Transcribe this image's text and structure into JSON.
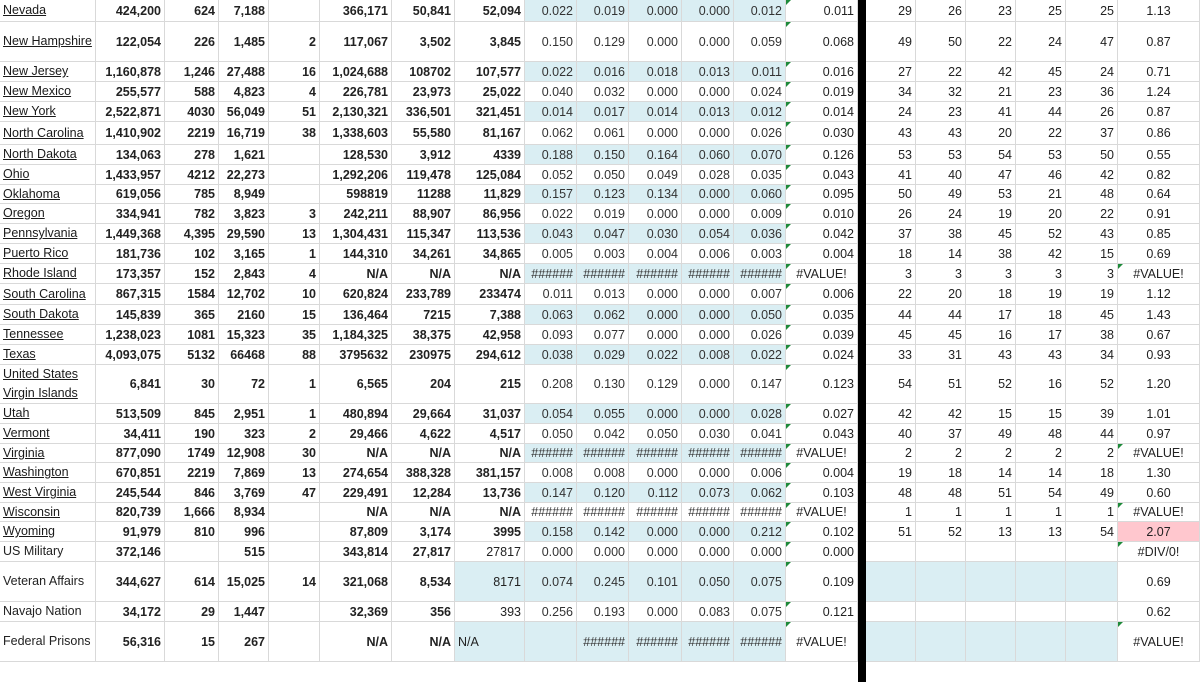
{
  "colors": {
    "band": "#daeef3",
    "highlight": "#ffc7ce",
    "grid": "#d9d9d9",
    "separator": "#000000",
    "error_flag": "#1e8a3a"
  },
  "rows": [
    {
      "name": "Nevada",
      "link": true,
      "c": [
        "424,200",
        "624",
        "7,188",
        "",
        "366,171",
        "50,841",
        "52,094"
      ],
      "d": [
        "0.022",
        "0.019",
        "0.000",
        "0.000",
        "0.012"
      ],
      "avg": "0.011",
      "r": [
        "29",
        "26",
        "23",
        "25",
        "25"
      ],
      "ratio": "1.13"
    },
    {
      "name": "New Hampshire",
      "link": true,
      "c": [
        "122,054",
        "226",
        "1,485",
        "2",
        "117,067",
        "3,502",
        "3,845"
      ],
      "d": [
        "0.150",
        "0.129",
        "0.000",
        "0.000",
        "0.059"
      ],
      "avg": "0.068",
      "r": [
        "49",
        "50",
        "22",
        "24",
        "47"
      ],
      "ratio": "0.87"
    },
    {
      "name": "New Jersey",
      "link": true,
      "c": [
        "1,160,878",
        "1,246",
        "27,488",
        "16",
        "1,024,688",
        "108702",
        "107,577"
      ],
      "d": [
        "0.022",
        "0.016",
        "0.018",
        "0.013",
        "0.011"
      ],
      "avg": "0.016",
      "r": [
        "27",
        "22",
        "42",
        "45",
        "24"
      ],
      "ratio": "0.71"
    },
    {
      "name": "New Mexico",
      "link": true,
      "c": [
        "255,577",
        "588",
        "4,823",
        "4",
        "226,781",
        "23,973",
        "25,022"
      ],
      "d": [
        "0.040",
        "0.032",
        "0.000",
        "0.000",
        "0.024"
      ],
      "avg": "0.019",
      "r": [
        "34",
        "32",
        "21",
        "23",
        "36"
      ],
      "ratio": "1.24"
    },
    {
      "name": "New York",
      "link": true,
      "c": [
        "2,522,871",
        "4030",
        "56,049",
        "51",
        "2,130,321",
        "336,501",
        "321,451"
      ],
      "d": [
        "0.014",
        "0.017",
        "0.014",
        "0.013",
        "0.012"
      ],
      "avg": "0.014",
      "r": [
        "24",
        "23",
        "41",
        "44",
        "26"
      ],
      "ratio": "0.87"
    },
    {
      "name": "North Carolina",
      "link": true,
      "c": [
        "1,410,902",
        "2219",
        "16,719",
        "38",
        "1,338,603",
        "55,580",
        "81,167"
      ],
      "d": [
        "0.062",
        "0.061",
        "0.000",
        "0.000",
        "0.026"
      ],
      "avg": "0.030",
      "r": [
        "43",
        "43",
        "20",
        "22",
        "37"
      ],
      "ratio": "0.86"
    },
    {
      "name": "North Dakota",
      "link": true,
      "c": [
        "134,063",
        "278",
        "1,621",
        "",
        "128,530",
        "3,912",
        "4339"
      ],
      "d": [
        "0.188",
        "0.150",
        "0.164",
        "0.060",
        "0.070"
      ],
      "avg": "0.126",
      "r": [
        "53",
        "53",
        "54",
        "53",
        "50"
      ],
      "ratio": "0.55"
    },
    {
      "name": "Ohio",
      "link": true,
      "c": [
        "1,433,957",
        "4212",
        "22,273",
        "",
        "1,292,206",
        "119,478",
        "125,084"
      ],
      "d": [
        "0.052",
        "0.050",
        "0.049",
        "0.028",
        "0.035"
      ],
      "avg": "0.043",
      "r": [
        "41",
        "40",
        "47",
        "46",
        "42"
      ],
      "ratio": "0.82"
    },
    {
      "name": "Oklahoma",
      "link": true,
      "c": [
        "619,056",
        "785",
        "8,949",
        "",
        "598819",
        "11288",
        "11,829"
      ],
      "d": [
        "0.157",
        "0.123",
        "0.134",
        "0.000",
        "0.060"
      ],
      "avg": "0.095",
      "r": [
        "50",
        "49",
        "53",
        "21",
        "48"
      ],
      "ratio": "0.64"
    },
    {
      "name": "Oregon",
      "link": true,
      "c": [
        "334,941",
        "782",
        "3,823",
        "3",
        "242,211",
        "88,907",
        "86,956"
      ],
      "d": [
        "0.022",
        "0.019",
        "0.000",
        "0.000",
        "0.009"
      ],
      "avg": "0.010",
      "r": [
        "26",
        "24",
        "19",
        "20",
        "22"
      ],
      "ratio": "0.91"
    },
    {
      "name": "Pennsylvania",
      "link": true,
      "c": [
        "1,449,368",
        "4,395",
        "29,590",
        "13",
        "1,304,431",
        "115,347",
        "113,536"
      ],
      "d": [
        "0.043",
        "0.047",
        "0.030",
        "0.054",
        "0.036"
      ],
      "avg": "0.042",
      "r": [
        "37",
        "38",
        "45",
        "52",
        "43"
      ],
      "ratio": "0.85"
    },
    {
      "name": "Puerto Rico",
      "link": true,
      "c": [
        "181,736",
        "102",
        "3,165",
        "1",
        "144,310",
        "34,261",
        "34,865"
      ],
      "d": [
        "0.005",
        "0.003",
        "0.004",
        "0.006",
        "0.003"
      ],
      "avg": "0.004",
      "r": [
        "18",
        "14",
        "38",
        "42",
        "15"
      ],
      "ratio": "0.69"
    },
    {
      "name": "Rhode Island",
      "link": true,
      "c": [
        "173,357",
        "152",
        "2,843",
        "4",
        "N/A",
        "N/A",
        "N/A"
      ],
      "d": [
        "######",
        "######",
        "######",
        "######",
        "######"
      ],
      "avg": "#VALUE!",
      "r": [
        "3",
        "3",
        "3",
        "3",
        "3"
      ],
      "ratio": "#VALUE!"
    },
    {
      "name": "South Carolina",
      "link": true,
      "c": [
        "867,315",
        "1584",
        "12,702",
        "10",
        "620,824",
        "233,789",
        "233474"
      ],
      "d": [
        "0.011",
        "0.013",
        "0.000",
        "0.000",
        "0.007"
      ],
      "avg": "0.006",
      "r": [
        "22",
        "20",
        "18",
        "19",
        "19"
      ],
      "ratio": "1.12"
    },
    {
      "name": "South Dakota",
      "link": true,
      "c": [
        "145,839",
        "365",
        "2160",
        "15",
        "136,464",
        "7215",
        "7,388"
      ],
      "d": [
        "0.063",
        "0.062",
        "0.000",
        "0.000",
        "0.050"
      ],
      "avg": "0.035",
      "r": [
        "44",
        "44",
        "17",
        "18",
        "45"
      ],
      "ratio": "1.43"
    },
    {
      "name": "Tennessee",
      "link": true,
      "c": [
        "1,238,023",
        "1081",
        "15,323",
        "35",
        "1,184,325",
        "38,375",
        "42,958"
      ],
      "d": [
        "0.093",
        "0.077",
        "0.000",
        "0.000",
        "0.026"
      ],
      "avg": "0.039",
      "r": [
        "45",
        "45",
        "16",
        "17",
        "38"
      ],
      "ratio": "0.67"
    },
    {
      "name": "Texas",
      "link": true,
      "c": [
        "4,093,075",
        "5132",
        "66468",
        "88",
        "3795632",
        "230975",
        "294,612"
      ],
      "d": [
        "0.038",
        "0.029",
        "0.022",
        "0.008",
        "0.022"
      ],
      "avg": "0.024",
      "r": [
        "33",
        "31",
        "43",
        "43",
        "34"
      ],
      "ratio": "0.93"
    },
    {
      "name": "United States Virgin Islands",
      "link": true,
      "c": [
        "6,841",
        "30",
        "72",
        "1",
        "6,565",
        "204",
        "215"
      ],
      "d": [
        "0.208",
        "0.130",
        "0.129",
        "0.000",
        "0.147"
      ],
      "avg": "0.123",
      "r": [
        "54",
        "51",
        "52",
        "16",
        "52"
      ],
      "ratio": "1.20"
    },
    {
      "name": "Utah",
      "link": true,
      "c": [
        "513,509",
        "845",
        "2,951",
        "1",
        "480,894",
        "29,664",
        "31,037"
      ],
      "d": [
        "0.054",
        "0.055",
        "0.000",
        "0.000",
        "0.028"
      ],
      "avg": "0.027",
      "r": [
        "42",
        "42",
        "15",
        "15",
        "39"
      ],
      "ratio": "1.01"
    },
    {
      "name": "Vermont",
      "link": true,
      "c": [
        "34,411",
        "190",
        "323",
        "2",
        "29,466",
        "4,622",
        "4,517"
      ],
      "d": [
        "0.050",
        "0.042",
        "0.050",
        "0.030",
        "0.041"
      ],
      "avg": "0.043",
      "r": [
        "40",
        "37",
        "49",
        "48",
        "44"
      ],
      "ratio": "0.97"
    },
    {
      "name": "Virginia",
      "link": true,
      "c": [
        "877,090",
        "1749",
        "12,908",
        "30",
        "N/A",
        "N/A",
        "N/A"
      ],
      "d": [
        "######",
        "######",
        "######",
        "######",
        "######"
      ],
      "avg": "#VALUE!",
      "r": [
        "2",
        "2",
        "2",
        "2",
        "2"
      ],
      "ratio": "#VALUE!"
    },
    {
      "name": "Washington",
      "link": true,
      "c": [
        "670,851",
        "2219",
        "7,869",
        "13",
        "274,654",
        "388,328",
        "381,157"
      ],
      "d": [
        "0.008",
        "0.008",
        "0.000",
        "0.000",
        "0.006"
      ],
      "avg": "0.004",
      "r": [
        "19",
        "18",
        "14",
        "14",
        "18"
      ],
      "ratio": "1.30"
    },
    {
      "name": "West Virginia",
      "link": true,
      "c": [
        "245,544",
        "846",
        "3,769",
        "47",
        "229,491",
        "12,284",
        "13,736"
      ],
      "d": [
        "0.147",
        "0.120",
        "0.112",
        "0.073",
        "0.062"
      ],
      "avg": "0.103",
      "r": [
        "48",
        "48",
        "51",
        "54",
        "49"
      ],
      "ratio": "0.60"
    },
    {
      "name": "Wisconsin",
      "link": true,
      "c": [
        "820,739",
        "1,666",
        "8,934",
        "",
        "N/A",
        "N/A",
        "N/A"
      ],
      "d": [
        "######",
        "######",
        "######",
        "######",
        "######"
      ],
      "avg": "#VALUE!",
      "r": [
        "1",
        "1",
        "1",
        "1",
        "1"
      ],
      "ratio": "#VALUE!"
    },
    {
      "name": "Wyoming",
      "link": true,
      "c": [
        "91,979",
        "810",
        "996",
        "",
        "87,809",
        "3,174",
        "3995"
      ],
      "d": [
        "0.158",
        "0.142",
        "0.000",
        "0.000",
        "0.212"
      ],
      "avg": "0.102",
      "r": [
        "51",
        "52",
        "13",
        "13",
        "54"
      ],
      "ratio": "2.07"
    },
    {
      "name": "US Military",
      "link": false,
      "c": [
        "372,146",
        "",
        "515",
        "",
        "343,814",
        "27,817",
        "27817"
      ],
      "d": [
        "0.000",
        "0.000",
        "0.000",
        "0.000",
        "0.000"
      ],
      "avg": "0.000",
      "r": [
        "",
        "",
        "",
        "",
        ""
      ],
      "ratio": "#DIV/0!"
    },
    {
      "name": "Veteran Affairs",
      "link": false,
      "c": [
        "344,627",
        "614",
        "15,025",
        "14",
        "321,068",
        "8,534",
        "8171"
      ],
      "d": [
        "0.074",
        "0.245",
        "0.101",
        "0.050",
        "0.075"
      ],
      "avg": "0.109",
      "r": [
        "",
        "",
        "",
        "",
        ""
      ],
      "ratio": "0.69"
    },
    {
      "name": "Navajo Nation",
      "link": false,
      "c": [
        "34,172",
        "29",
        "1,447",
        "",
        "32,369",
        "356",
        "393"
      ],
      "d": [
        "0.256",
        "0.193",
        "0.000",
        "0.083",
        "0.075"
      ],
      "avg": "0.121",
      "r": [
        "",
        "",
        "",
        "",
        ""
      ],
      "ratio": "0.62"
    },
    {
      "name": "Federal Prisons",
      "link": false,
      "c": [
        "56,316",
        "15",
        "267",
        "",
        "N/A",
        "N/A",
        "N/A"
      ],
      "d": [
        "",
        "######",
        "######",
        "######",
        "######"
      ],
      "avg": "#VALUE!",
      "r": [
        "",
        "",
        "",
        "",
        ""
      ],
      "ratio": "#VALUE!"
    }
  ]
}
